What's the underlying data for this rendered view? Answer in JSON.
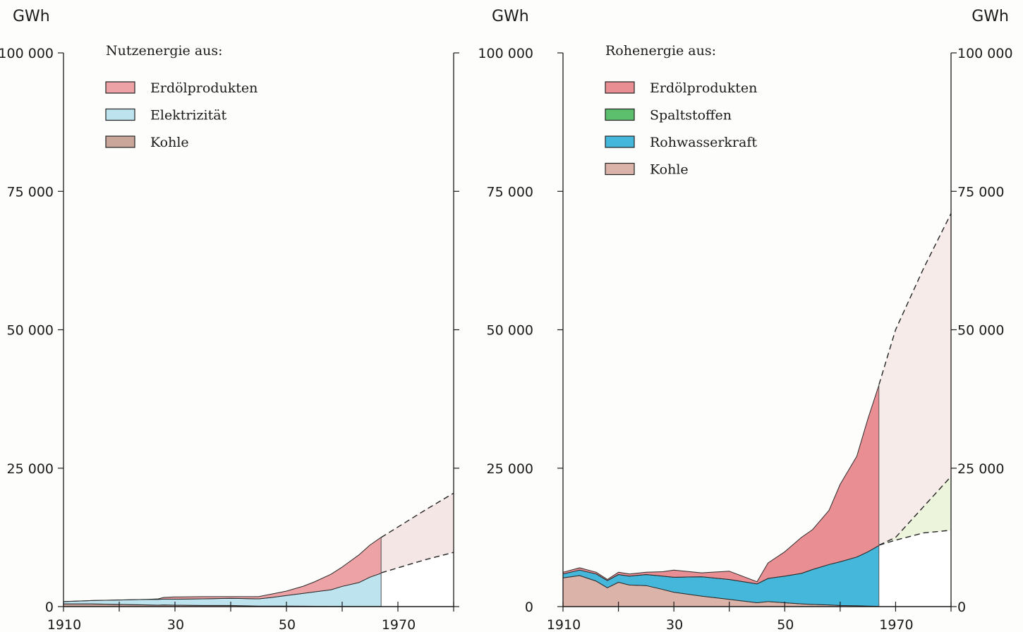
{
  "chart_data": [
    {
      "type": "area",
      "stacked": true,
      "title": "",
      "ylabel": "GWh",
      "xlabel": "",
      "xlim": [
        1910,
        1980
      ],
      "ylim": [
        0,
        100000
      ],
      "x_ticks": [
        1910,
        1920,
        1930,
        1940,
        1950,
        1960,
        1970,
        1980
      ],
      "x_tick_labels": [
        {
          "value": 1910,
          "label": "1910"
        },
        {
          "value": 1930,
          "label": "30"
        },
        {
          "value": 1950,
          "label": "50"
        },
        {
          "value": 1970,
          "label": "1970"
        }
      ],
      "y_tick_labels": [
        {
          "value": 0,
          "label": "0"
        },
        {
          "value": 25000,
          "label": "25 000"
        },
        {
          "value": 50000,
          "label": "50 000"
        },
        {
          "value": 75000,
          "label": "75 000"
        },
        {
          "value": 100000,
          "label": "100 000"
        }
      ],
      "legend_title": "Nutzenergie aus:",
      "legend_position": "top-left",
      "legend_order": [
        "Erdölprodukten",
        "Elektrizität",
        "Kohle"
      ],
      "grid": false,
      "x": [
        1910,
        1915,
        1920,
        1925,
        1927,
        1928,
        1930,
        1935,
        1940,
        1945,
        1947,
        1950,
        1953,
        1955,
        1958,
        1960,
        1963,
        1965,
        1967
      ],
      "series": [
        {
          "name": "Kohle",
          "color": "#c9a59a",
          "values": [
            500,
            500,
            400,
            300,
            250,
            300,
            250,
            200,
            200,
            100,
            100,
            100,
            80,
            60,
            50,
            50,
            40,
            30,
            20
          ]
        },
        {
          "name": "Elektrizität",
          "color": "#bde3ee",
          "values": [
            400,
            600,
            800,
            1000,
            1050,
            1050,
            1100,
            1200,
            1300,
            1300,
            1500,
            1900,
            2300,
            2600,
            3000,
            3600,
            4300,
            5300,
            6000
          ]
        },
        {
          "name": "Erdölprodukten",
          "color": "#eda3a6",
          "values": [
            0,
            0,
            0,
            0,
            100,
            300,
            400,
            400,
            300,
            400,
            600,
            800,
            1300,
            1800,
            2800,
            3500,
            5000,
            5800,
            6500
          ]
        }
      ],
      "projection": {
        "x": [
          1967,
          1975,
          1980
        ],
        "lower_total": [
          6100,
          8500,
          9800
        ],
        "upper_total": [
          12500,
          17500,
          20500
        ],
        "fill": "#f4e6e4",
        "lower_fill": "#ffffff"
      }
    },
    {
      "type": "area",
      "stacked": true,
      "title": "",
      "ylabel": "GWh",
      "xlabel": "",
      "xlim": [
        1910,
        1980
      ],
      "ylim": [
        0,
        100000
      ],
      "x_ticks": [
        1910,
        1920,
        1930,
        1940,
        1950,
        1960,
        1970,
        1980
      ],
      "x_tick_labels": [
        {
          "value": 1910,
          "label": "1910"
        },
        {
          "value": 1930,
          "label": "30"
        },
        {
          "value": 1950,
          "label": "50"
        },
        {
          "value": 1970,
          "label": "1970"
        }
      ],
      "y_tick_labels": [
        {
          "value": 0,
          "label": "0"
        },
        {
          "value": 25000,
          "label": "25 000"
        },
        {
          "value": 50000,
          "label": "50 000"
        },
        {
          "value": 75000,
          "label": "75 000"
        },
        {
          "value": 100000,
          "label": "100 000"
        }
      ],
      "legend_title": "Rohenergie aus:",
      "legend_position": "top-left",
      "legend_order": [
        "Erdölprodukten",
        "Spaltstoffen",
        "Rohwasserkraft",
        "Kohle"
      ],
      "grid": false,
      "x": [
        1910,
        1913,
        1916,
        1918,
        1920,
        1922,
        1925,
        1928,
        1930,
        1935,
        1940,
        1945,
        1947,
        1950,
        1953,
        1955,
        1958,
        1960,
        1963,
        1965,
        1967
      ],
      "series": [
        {
          "name": "Kohle",
          "color": "#dbb3a8",
          "values": [
            5200,
            5600,
            4600,
            3400,
            4400,
            3900,
            3800,
            3100,
            2600,
            1900,
            1300,
            700,
            900,
            700,
            500,
            400,
            300,
            200,
            150,
            100,
            50
          ]
        },
        {
          "name": "Rohwasserkraft",
          "color": "#44b7da",
          "values": [
            700,
            1000,
            1300,
            1300,
            1400,
            1600,
            2000,
            2400,
            2700,
            3500,
            3600,
            3400,
            4200,
            4800,
            5500,
            6300,
            7300,
            7900,
            8800,
            9800,
            11000
          ]
        },
        {
          "name": "Spaltstoffen",
          "color": "#5bbf6e",
          "values": [
            0,
            0,
            0,
            0,
            0,
            0,
            0,
            0,
            0,
            0,
            0,
            0,
            0,
            0,
            0,
            0,
            0,
            0,
            0,
            0,
            0
          ]
        },
        {
          "name": "Erdölprodukten",
          "color": "#e98f94",
          "values": [
            300,
            400,
            300,
            200,
            400,
            400,
            400,
            800,
            1300,
            700,
            1500,
            400,
            2800,
            4400,
            6500,
            7200,
            9800,
            14000,
            18200,
            24000,
            29000
          ]
        }
      ],
      "projection": {
        "x": [
          1967,
          1970,
          1975,
          1980
        ],
        "rohwasser_top": [
          11100,
          12000,
          13300,
          13800
        ],
        "spalt_top": [
          11100,
          12500,
          18000,
          23500
        ],
        "upper_total": [
          40100,
          50000,
          61000,
          71000
        ],
        "fill_upper": "#f6ebe9",
        "fill_spalt": "#ecf5dc",
        "fill_lower": "#ffffff"
      }
    }
  ]
}
